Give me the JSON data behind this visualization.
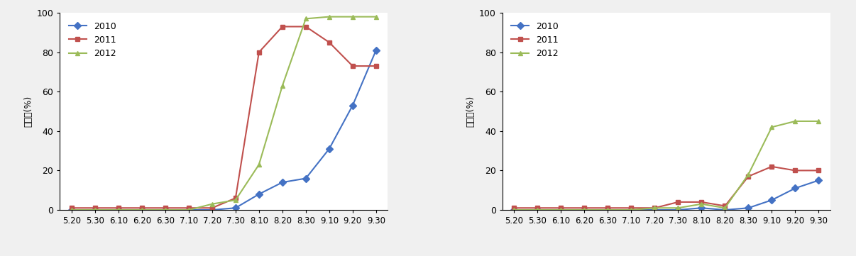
{
  "x_labels": [
    "5.20",
    "5.30",
    "6.10",
    "6.20",
    "6.30",
    "7.10",
    "7.20",
    "7.30",
    "8.10",
    "8.20",
    "8.30",
    "9.10",
    "9.20",
    "9.30"
  ],
  "left": {
    "2010": [
      0,
      0,
      0,
      0,
      0,
      0,
      0,
      1,
      8,
      14,
      16,
      31,
      53,
      81
    ],
    "2011": [
      1,
      1,
      1,
      1,
      1,
      1,
      1,
      6,
      80,
      93,
      93,
      85,
      73,
      73
    ],
    "2012": [
      0,
      0,
      0,
      0,
      0,
      0,
      3,
      5,
      23,
      63,
      97,
      98,
      98,
      98
    ]
  },
  "right": {
    "2010": [
      0,
      0,
      0,
      0,
      0,
      0,
      0,
      0,
      1,
      0,
      1,
      5,
      11,
      15
    ],
    "2011": [
      1,
      1,
      1,
      1,
      1,
      1,
      1,
      4,
      4,
      2,
      17,
      22,
      20,
      20
    ],
    "2012": [
      0,
      0,
      0,
      0,
      0,
      0,
      1,
      1,
      3,
      1,
      18,
      42,
      45,
      45
    ]
  },
  "colors": {
    "2010": "#4472C4",
    "2011": "#C0504D",
    "2012": "#9BBB59"
  },
  "markers": {
    "2010": "D",
    "2011": "s",
    "2012": "^"
  },
  "ylabel": "발병율(%)",
  "ylim": [
    0,
    100
  ],
  "yticks": [
    0,
    20,
    40,
    60,
    80,
    100
  ]
}
